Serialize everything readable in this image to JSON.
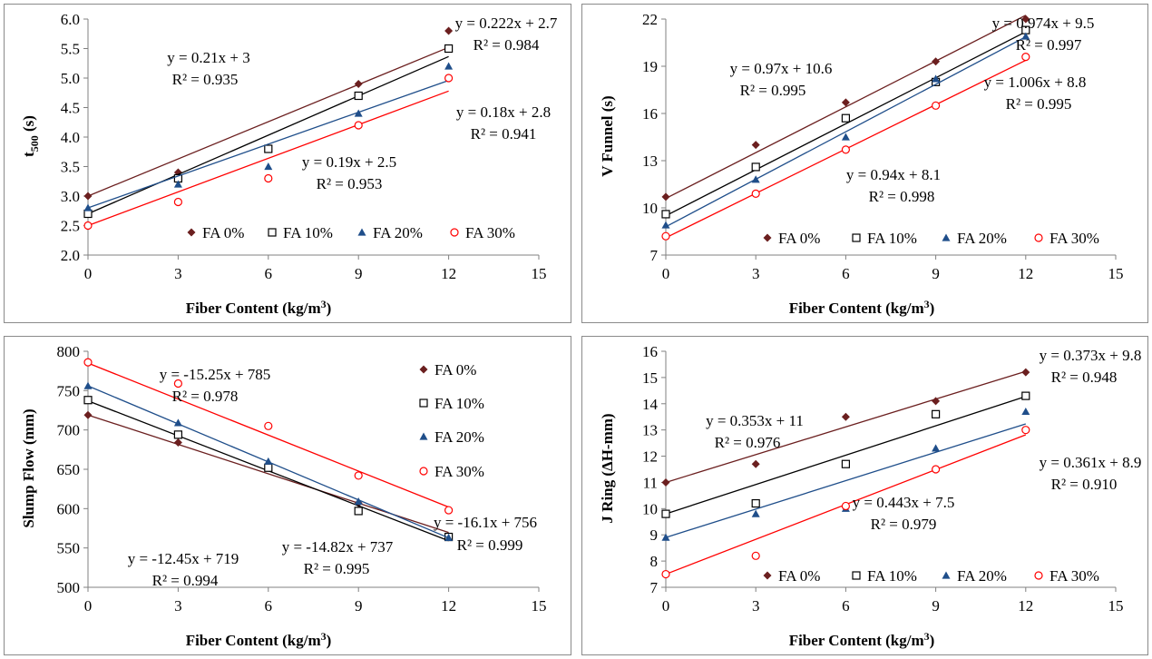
{
  "colors": {
    "FA 0%": "#6b1f1f",
    "FA 10%": "#000000",
    "FA 20%": "#1f4e8a",
    "FA 30%": "#ff0000"
  },
  "chart_data": [
    {
      "type": "scatter",
      "xlabel": "Fiber Content (kg/m3)",
      "ylabel": "t500 (s)",
      "xlim": [
        0,
        15
      ],
      "ylim": [
        2.0,
        6.0
      ],
      "xticks": [
        "0",
        "3",
        "6",
        "9",
        "12",
        "15"
      ],
      "yticks": [
        "2.0",
        "2.5",
        "3.0",
        "3.5",
        "4.0",
        "4.5",
        "5.0",
        "5.5",
        "6.0"
      ],
      "legend_position": "bottom",
      "x": [
        0,
        3,
        6,
        9,
        12
      ],
      "series": [
        {
          "name": "FA 0%",
          "marker": "diamond",
          "values": [
            3.0,
            3.4,
            3.8,
            4.9,
            5.8
          ],
          "trend": {
            "slope": 0.21,
            "intercept": 3
          },
          "equation": "y = 0.21x + 3",
          "r2": "R² = 0.935"
        },
        {
          "name": "FA 10%",
          "marker": "square",
          "values": [
            2.7,
            3.3,
            3.8,
            4.7,
            5.5
          ],
          "trend": {
            "slope": 0.222,
            "intercept": 2.7
          },
          "equation": "y = 0.222x + 2.7",
          "r2": "R² = 0.984"
        },
        {
          "name": "FA 20%",
          "marker": "triangle",
          "values": [
            2.8,
            3.2,
            3.5,
            4.4,
            5.2
          ],
          "trend": {
            "slope": 0.18,
            "intercept": 2.8
          },
          "equation": "y = 0.18x + 2.8",
          "r2": "R² = 0.941"
        },
        {
          "name": "FA 30%",
          "marker": "circle",
          "values": [
            2.5,
            2.9,
            3.3,
            4.2,
            5.0
          ],
          "trend": {
            "slope": 0.19,
            "intercept": 2.5
          },
          "equation": "y = 0.19x + 2.5",
          "r2": "R² = 0.953"
        }
      ]
    },
    {
      "type": "scatter",
      "xlabel": "Fiber Content (kg/m3)",
      "ylabel": "V Funnel  (s)",
      "xlim": [
        0,
        15
      ],
      "ylim": [
        7,
        22
      ],
      "xticks": [
        "0",
        "3",
        "6",
        "9",
        "12",
        "15"
      ],
      "yticks": [
        "7",
        "10",
        "13",
        "16",
        "19",
        "22"
      ],
      "legend_position": "bottom",
      "x": [
        0,
        3,
        6,
        9,
        12
      ],
      "series": [
        {
          "name": "FA 0%",
          "marker": "diamond",
          "values": [
            10.7,
            14.0,
            16.7,
            19.3,
            22.0
          ],
          "trend": {
            "slope": 0.97,
            "intercept": 10.6
          },
          "equation": "y = 0.97x + 10.6",
          "r2": "R² = 0.995"
        },
        {
          "name": "FA 10%",
          "marker": "square",
          "values": [
            9.6,
            12.6,
            15.7,
            18.0,
            21.3
          ],
          "trend": {
            "slope": 0.974,
            "intercept": 9.5
          },
          "equation": "y = 0.974x + 9.5",
          "r2": "R² = 0.997"
        },
        {
          "name": "FA 20%",
          "marker": "triangle",
          "values": [
            8.9,
            11.8,
            14.5,
            18.2,
            20.9
          ],
          "trend": {
            "slope": 1.006,
            "intercept": 8.8
          },
          "equation": "y = 1.006x + 8.8",
          "r2": "R² = 0.995"
        },
        {
          "name": "FA 30%",
          "marker": "circle",
          "values": [
            8.2,
            10.9,
            13.7,
            16.5,
            19.6
          ],
          "trend": {
            "slope": 0.94,
            "intercept": 8.1
          },
          "equation": "y = 0.94x + 8.1",
          "r2": "R² = 0.998"
        }
      ]
    },
    {
      "type": "scatter",
      "xlabel": "Fiber Content (kg/m3)",
      "ylabel": "Slump Flow (mm)",
      "xlim": [
        0,
        15
      ],
      "ylim": [
        500,
        800
      ],
      "xticks": [
        "0",
        "3",
        "6",
        "9",
        "12",
        "15"
      ],
      "yticks": [
        "500",
        "550",
        "600",
        "650",
        "700",
        "750",
        "800"
      ],
      "legend_position": "top-right",
      "x": [
        0,
        3,
        6,
        9,
        12
      ],
      "series": [
        {
          "name": "FA 0%",
          "marker": "diamond",
          "values": [
            719,
            684,
            652,
            607,
            564
          ],
          "trend": {
            "slope": -12.45,
            "intercept": 719
          },
          "equation": "y = -12.45x + 719",
          "r2": "R² = 0.994"
        },
        {
          "name": "FA 10%",
          "marker": "square",
          "values": [
            738,
            694,
            652,
            597,
            564
          ],
          "trend": {
            "slope": -14.82,
            "intercept": 737
          },
          "equation": "y = -14.82x + 737",
          "r2": "R² = 0.995"
        },
        {
          "name": "FA 20%",
          "marker": "triangle",
          "values": [
            756,
            709,
            660,
            609,
            563
          ],
          "trend": {
            "slope": -16.1,
            "intercept": 756
          },
          "equation": "y = -16.1x + 756",
          "r2": "R² = 0.999"
        },
        {
          "name": "FA 30%",
          "marker": "circle",
          "values": [
            786,
            759,
            705,
            642,
            598
          ],
          "trend": {
            "slope": -15.25,
            "intercept": 785
          },
          "equation": "y = -15.25x + 785",
          "r2": "R² = 0.978"
        }
      ]
    },
    {
      "type": "scatter",
      "xlabel": "Fiber Content (kg/m3)",
      "ylabel": "J Ring (ΔH-mm)",
      "xlim": [
        0,
        15
      ],
      "ylim": [
        7,
        16
      ],
      "xticks": [
        "0",
        "3",
        "6",
        "9",
        "12",
        "15"
      ],
      "yticks": [
        "7",
        "8",
        "9",
        "10",
        "11",
        "12",
        "13",
        "14",
        "15",
        "16"
      ],
      "legend_position": "bottom",
      "x": [
        0,
        3,
        6,
        9,
        12
      ],
      "series": [
        {
          "name": "FA 0%",
          "marker": "diamond",
          "values": [
            11.0,
            11.7,
            13.5,
            14.1,
            15.2
          ],
          "trend": {
            "slope": 0.353,
            "intercept": 11
          },
          "equation": "y = 0.353x + 11",
          "r2": "R² = 0.976"
        },
        {
          "name": "FA 10%",
          "marker": "square",
          "values": [
            9.8,
            10.2,
            11.7,
            13.6,
            14.3
          ],
          "trend": {
            "slope": 0.373,
            "intercept": 9.8
          },
          "equation": "y = 0.373x + 9.8",
          "r2": "R² = 0.948"
        },
        {
          "name": "FA 20%",
          "marker": "triangle",
          "values": [
            8.9,
            9.8,
            10.0,
            12.3,
            13.7
          ],
          "trend": {
            "slope": 0.361,
            "intercept": 8.9
          },
          "equation": "y = 0.361x + 8.9",
          "r2": "R² = 0.910"
        },
        {
          "name": "FA 30%",
          "marker": "circle",
          "values": [
            7.5,
            8.2,
            10.1,
            11.5,
            13.0
          ],
          "trend": {
            "slope": 0.443,
            "intercept": 7.5
          },
          "equation": "y = 0.443x + 7.5",
          "r2": "R² = 0.979"
        }
      ]
    }
  ]
}
